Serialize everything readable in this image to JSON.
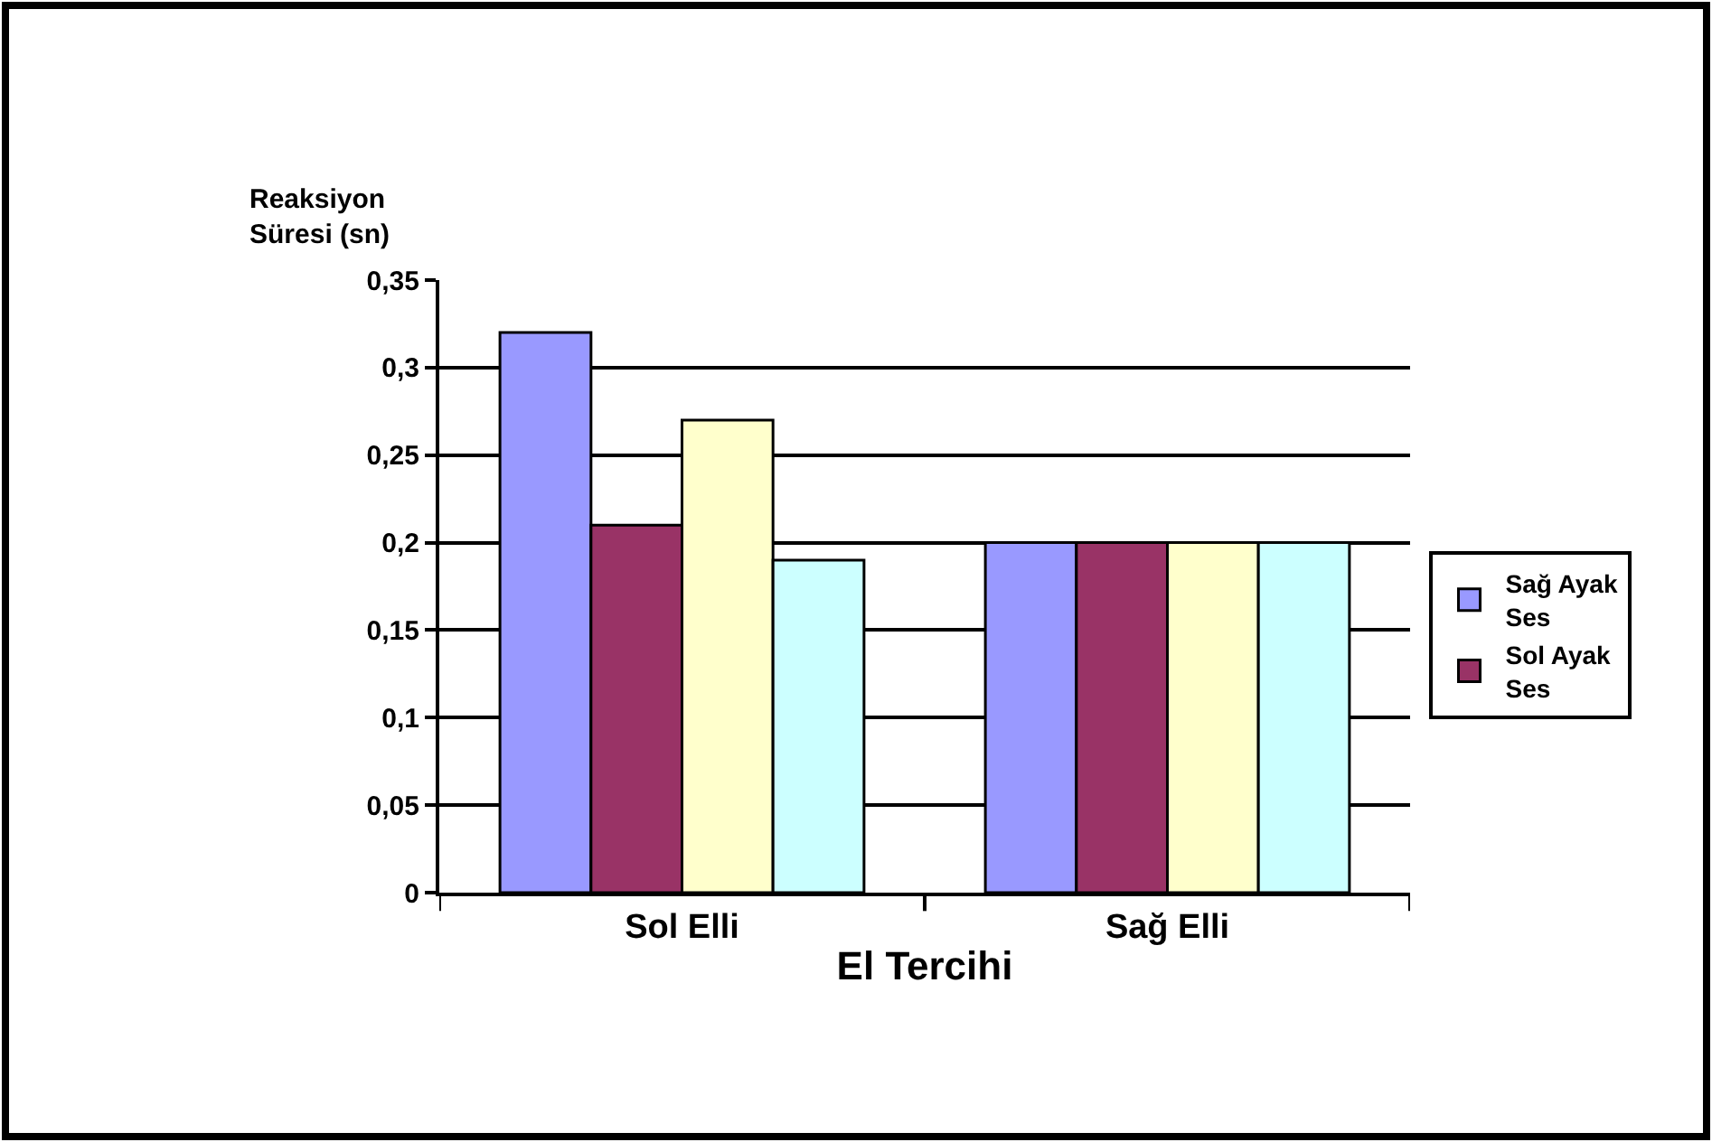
{
  "chart_data": {
    "type": "bar",
    "xlabel": "El Tercihi",
    "ylabel": "Reaksiyon Süresi (sn)",
    "categories": [
      "Sol Elli",
      "Sağ Elli"
    ],
    "series": [
      {
        "name": "Sağ Ayak Ses",
        "color": "#9999ff",
        "values": [
          0.32,
          0.2
        ]
      },
      {
        "name": "Sol Ayak Ses",
        "color": "#993366",
        "values": [
          0.21,
          0.2
        ]
      },
      {
        "color": "#ffffcc",
        "values": [
          0.27,
          0.2
        ]
      },
      {
        "color": "#ccffff",
        "values": [
          0.19,
          0.2
        ]
      }
    ],
    "ylim": [
      0,
      0.35
    ],
    "yticks": [
      0,
      {
        "value": 0.05,
        "label": "0,05"
      },
      {
        "value": 0.1,
        "label": "0,1"
      },
      {
        "value": 0.15,
        "label": "0,15"
      },
      {
        "value": 0.2,
        "label": "0,2"
      },
      {
        "value": 0.25,
        "label": "0,25"
      },
      {
        "value": 0.3,
        "label": "0,3"
      },
      {
        "value": 0.35,
        "label": "0,35"
      }
    ],
    "grid": "y",
    "legend": "right"
  }
}
